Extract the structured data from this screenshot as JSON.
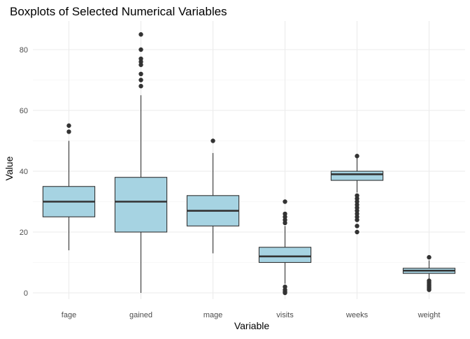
{
  "chart_data": {
    "type": "boxplot",
    "title": "Boxplots of Selected Numerical Variables",
    "xlabel": "Variable",
    "ylabel": "Value",
    "ylim": [
      -1,
      88
    ],
    "yticks": [
      0,
      20,
      40,
      60,
      80
    ],
    "grid": true,
    "box_fill": "#a6d3e2",
    "box_stroke": "#333333",
    "outlier_color": "#333333",
    "categories": [
      "fage",
      "gained",
      "mage",
      "visits",
      "weeks",
      "weight"
    ],
    "boxes": [
      {
        "name": "fage",
        "q1": 25,
        "median": 30,
        "q3": 35,
        "whisker_low": 14,
        "whisker_high": 50,
        "outliers": [
          53,
          55
        ]
      },
      {
        "name": "gained",
        "q1": 20,
        "median": 30,
        "q3": 38,
        "whisker_low": 0,
        "whisker_high": 65,
        "outliers": [
          68,
          70,
          72,
          75,
          76,
          77,
          80,
          85
        ]
      },
      {
        "name": "mage",
        "q1": 22,
        "median": 27,
        "q3": 32,
        "whisker_low": 13,
        "whisker_high": 46,
        "outliers": [
          50
        ]
      },
      {
        "name": "visits",
        "q1": 10,
        "median": 12,
        "q3": 15,
        "whisker_low": 3,
        "whisker_high": 22,
        "outliers": [
          0,
          0.5,
          1,
          2,
          23,
          24,
          25,
          26,
          30
        ]
      },
      {
        "name": "weeks",
        "q1": 37,
        "median": 39,
        "q3": 40,
        "whisker_low": 33,
        "whisker_high": 45,
        "outliers": [
          20,
          22,
          24,
          25,
          26,
          27,
          28,
          29,
          30,
          31,
          32,
          45
        ]
      },
      {
        "name": "weight",
        "q1": 6.4,
        "median": 7.3,
        "q3": 8.1,
        "whisker_low": 4.4,
        "whisker_high": 10.7,
        "outliers": [
          1,
          1.5,
          2,
          2.5,
          3,
          3.5,
          4,
          11.7
        ]
      }
    ]
  }
}
